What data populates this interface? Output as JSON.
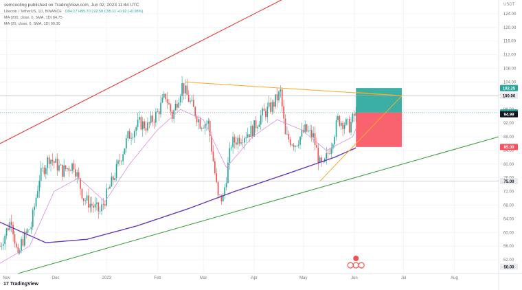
{
  "header": {
    "publisher": "semcooling published on TradingView.com, Jun 02, 2023 11:44 UTC",
    "symbol": "Litecoin / TetherUS, 1D, BINANCE",
    "ohlc": "O94.17 H95.70 L92.58 C95.11 +0.92 (+0.98%)",
    "ma200": "MA (200, close, 0, SMA, 1D) 84.75",
    "ma20": "MA (20, close, 0, SMA, 1D) 90.30",
    "currency": "USDT"
  },
  "footer": {
    "logo_text": "TradingView"
  },
  "colors": {
    "up": "#26a69a",
    "down": "#ef5350",
    "ma200": "#673ab7",
    "ma20": "#d98fdc",
    "upper_channel": "#e53935",
    "lower_channel": "#43a047",
    "triangle": "#ffa726",
    "target_zone": "#26a69a",
    "stop_zone": "#f7525f"
  },
  "chart_data": {
    "type": "candlestick",
    "timeframe": "1D",
    "symbol": "LTCUSDT",
    "x_range": [
      "2022-10-28",
      "2023-08-28"
    ],
    "y_range": [
      48,
      128
    ],
    "y_ticks": [
      52,
      56,
      60,
      64,
      68,
      72,
      76,
      80,
      84,
      88,
      92,
      96,
      100,
      104,
      108,
      112,
      116,
      120,
      124
    ],
    "x_tick_labels": [
      {
        "label": "Nov",
        "date": "2022-11-01"
      },
      {
        "label": "Dec",
        "date": "2022-12-01"
      },
      {
        "label": "2023",
        "date": "2023-01-01"
      },
      {
        "label": "Feb",
        "date": "2023-02-01"
      },
      {
        "label": "Mar",
        "date": "2023-03-01"
      },
      {
        "label": "Apr",
        "date": "2023-04-01"
      },
      {
        "label": "May",
        "date": "2023-05-01"
      },
      {
        "label": "Jun",
        "date": "2023-06-01"
      },
      {
        "label": "Jul",
        "date": "2023-07-01"
      },
      {
        "label": "Aug",
        "date": "2023-08-01"
      }
    ],
    "price_path": [
      [
        "2022-10-28",
        56
      ],
      [
        "2022-11-04",
        64
      ],
      [
        "2022-11-08",
        52
      ],
      [
        "2022-11-10",
        57
      ],
      [
        "2022-11-16",
        62
      ],
      [
        "2022-11-21",
        76
      ],
      [
        "2022-11-27",
        82
      ],
      [
        "2022-12-05",
        78
      ],
      [
        "2022-12-12",
        80
      ],
      [
        "2022-12-18",
        70
      ],
      [
        "2022-12-28",
        66
      ],
      [
        "2023-01-06",
        77
      ],
      [
        "2023-01-14",
        88
      ],
      [
        "2023-01-21",
        92
      ],
      [
        "2023-01-26",
        91
      ],
      [
        "2023-02-01",
        95
      ],
      [
        "2023-02-06",
        100
      ],
      [
        "2023-02-10",
        94
      ],
      [
        "2023-02-16",
        103
      ],
      [
        "2023-02-21",
        98
      ],
      [
        "2023-02-27",
        92
      ],
      [
        "2023-03-04",
        92
      ],
      [
        "2023-03-10",
        70
      ],
      [
        "2023-03-13",
        70
      ],
      [
        "2023-03-18",
        86
      ],
      [
        "2023-03-24",
        88
      ],
      [
        "2023-03-31",
        90
      ],
      [
        "2023-04-05",
        94
      ],
      [
        "2023-04-12",
        97
      ],
      [
        "2023-04-17",
        101
      ],
      [
        "2023-04-20",
        88
      ],
      [
        "2023-04-26",
        86
      ],
      [
        "2023-05-02",
        90
      ],
      [
        "2023-05-07",
        88
      ],
      [
        "2023-05-11",
        80
      ],
      [
        "2023-05-13",
        79
      ],
      [
        "2023-05-18",
        86
      ],
      [
        "2023-05-22",
        93
      ],
      [
        "2023-05-26",
        92
      ],
      [
        "2023-05-29",
        91
      ],
      [
        "2023-06-02",
        95.11
      ]
    ],
    "series": [
      {
        "name": "MA (200, close, 0, SMA, 1D)",
        "type": "line",
        "points": [
          [
            "2022-10-28",
            63
          ],
          [
            "2022-11-25",
            57
          ],
          [
            "2022-12-20",
            58
          ],
          [
            "2023-01-20",
            62
          ],
          [
            "2023-02-20",
            67
          ],
          [
            "2023-03-20",
            72
          ],
          [
            "2023-04-20",
            77
          ],
          [
            "2023-05-20",
            82
          ],
          [
            "2023-06-02",
            84.75
          ]
        ]
      },
      {
        "name": "MA (20, close, 0, SMA, 1D)",
        "type": "line",
        "points": [
          [
            "2022-10-28",
            51
          ],
          [
            "2022-11-15",
            56
          ],
          [
            "2022-11-30",
            72
          ],
          [
            "2022-12-15",
            76
          ],
          [
            "2022-12-31",
            69
          ],
          [
            "2023-01-15",
            80
          ],
          [
            "2023-02-01",
            90
          ],
          [
            "2023-02-15",
            96
          ],
          [
            "2023-03-01",
            93
          ],
          [
            "2023-03-15",
            79
          ],
          [
            "2023-03-31",
            88
          ],
          [
            "2023-04-15",
            93
          ],
          [
            "2023-04-30",
            90
          ],
          [
            "2023-05-15",
            84
          ],
          [
            "2023-05-31",
            88
          ],
          [
            "2023-06-02",
            90.3
          ]
        ]
      }
    ],
    "drawings": [
      {
        "name": "upper channel",
        "from": [
          "2022-10-28",
          86
        ],
        "to": [
          "2023-06-30",
          146
        ]
      },
      {
        "name": "lower channel",
        "from": [
          "2022-11-08",
          48
        ],
        "to": [
          "2023-08-28",
          88
        ]
      },
      {
        "name": "triangle upper",
        "from": [
          "2023-02-18",
          104
        ],
        "to": [
          "2023-06-30",
          100
        ]
      },
      {
        "name": "triangle lower",
        "from": [
          "2023-05-11",
          75
        ],
        "to": [
          "2023-06-30",
          100
        ]
      },
      {
        "name": "triangle apex right",
        "from": [
          "2023-06-02",
          101
        ],
        "to": [
          "2023-06-30",
          100
        ]
      }
    ],
    "position": {
      "entry": 95.11,
      "target": 102.25,
      "stop": 85.0,
      "from_date": "2023-06-02",
      "to_date": "2023-06-30"
    },
    "horizontal_lines": [
      100.0,
      75.0
    ],
    "price_labels": [
      {
        "value": 102.25,
        "text": "102.25",
        "style": "target"
      },
      {
        "value": 100.0,
        "text": "100.00",
        "style": "plain"
      },
      {
        "value": 95.11,
        "text": "95.11",
        "style": "last"
      },
      {
        "value": 94.99,
        "text": "94.99",
        "style": "dark"
      },
      {
        "value": 85.0,
        "text": "85.00",
        "style": "stop"
      },
      {
        "value": 75.0,
        "text": "75.00",
        "style": "plain"
      },
      {
        "value": 50.0,
        "text": "50.00",
        "style": "plain"
      }
    ]
  }
}
